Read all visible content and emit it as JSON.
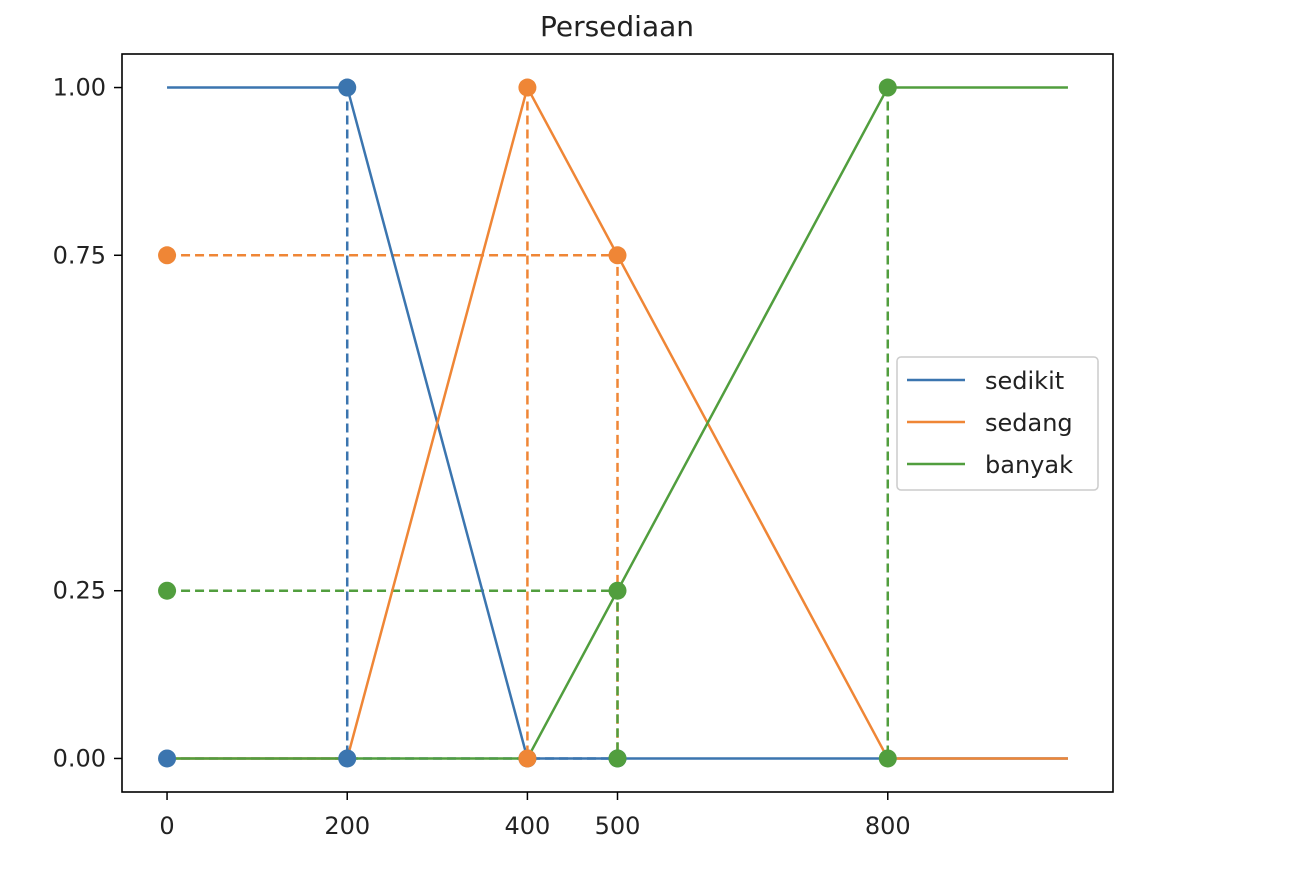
{
  "chart_data": {
    "type": "line",
    "title": "Persediaan",
    "xlabel": "",
    "ylabel": "",
    "xlim": [
      -50,
      1050
    ],
    "ylim": [
      -0.05,
      1.05
    ],
    "x_ticks": [
      0,
      200,
      400,
      500,
      800
    ],
    "y_ticks": [
      0.0,
      0.25,
      0.75,
      1.0
    ],
    "x_tick_labels": [
      "0",
      "200",
      "400",
      "500",
      "800"
    ],
    "y_tick_labels": [
      "0.00",
      "0.25",
      "0.75",
      "1.00"
    ],
    "grid": false,
    "legend_position": "center-right",
    "series": [
      {
        "name": "sedikit",
        "color": "#3b75af",
        "x": [
          0,
          200,
          400,
          1000
        ],
        "y": [
          1,
          1,
          0,
          0
        ]
      },
      {
        "name": "sedang",
        "color": "#ef8636",
        "x": [
          0,
          200,
          400,
          800,
          1000
        ],
        "y": [
          0,
          0,
          1,
          0,
          0
        ]
      },
      {
        "name": "banyak",
        "color": "#519e3e",
        "x": [
          0,
          400,
          800,
          1000
        ],
        "y": [
          0,
          0,
          1,
          1
        ]
      }
    ],
    "guides": [
      {
        "series": "sedikit",
        "color": "#3b75af",
        "points": [
          [
            0,
            0
          ],
          [
            200,
            1
          ],
          [
            200,
            0
          ],
          [
            400,
            0
          ],
          [
            500,
            0
          ]
        ]
      },
      {
        "series": "sedang",
        "color": "#ef8636",
        "points": [
          [
            0,
            0.75
          ],
          [
            400,
            1
          ],
          [
            400,
            0
          ],
          [
            500,
            0.75
          ]
        ]
      },
      {
        "series": "banyak",
        "color": "#519e3e",
        "points": [
          [
            0,
            0.25
          ],
          [
            500,
            0.25
          ],
          [
            500,
            0
          ],
          [
            800,
            1
          ],
          [
            800,
            0
          ]
        ]
      }
    ],
    "guide_lines": [
      {
        "color": "#3b75af",
        "points": [
          [
            200,
            1
          ],
          [
            200,
            0
          ]
        ]
      },
      {
        "color": "#3b75af",
        "points": [
          [
            0,
            0
          ],
          [
            500,
            0
          ]
        ]
      },
      {
        "color": "#ef8636",
        "points": [
          [
            400,
            1
          ],
          [
            400,
            0
          ]
        ]
      },
      {
        "color": "#ef8636",
        "points": [
          [
            0,
            0.75
          ],
          [
            500,
            0.75
          ],
          [
            500,
            0
          ]
        ]
      },
      {
        "color": "#519e3e",
        "points": [
          [
            0,
            0.25
          ],
          [
            500,
            0.25
          ],
          [
            500,
            0
          ]
        ]
      },
      {
        "color": "#519e3e",
        "points": [
          [
            800,
            1
          ],
          [
            800,
            0
          ]
        ]
      }
    ]
  }
}
